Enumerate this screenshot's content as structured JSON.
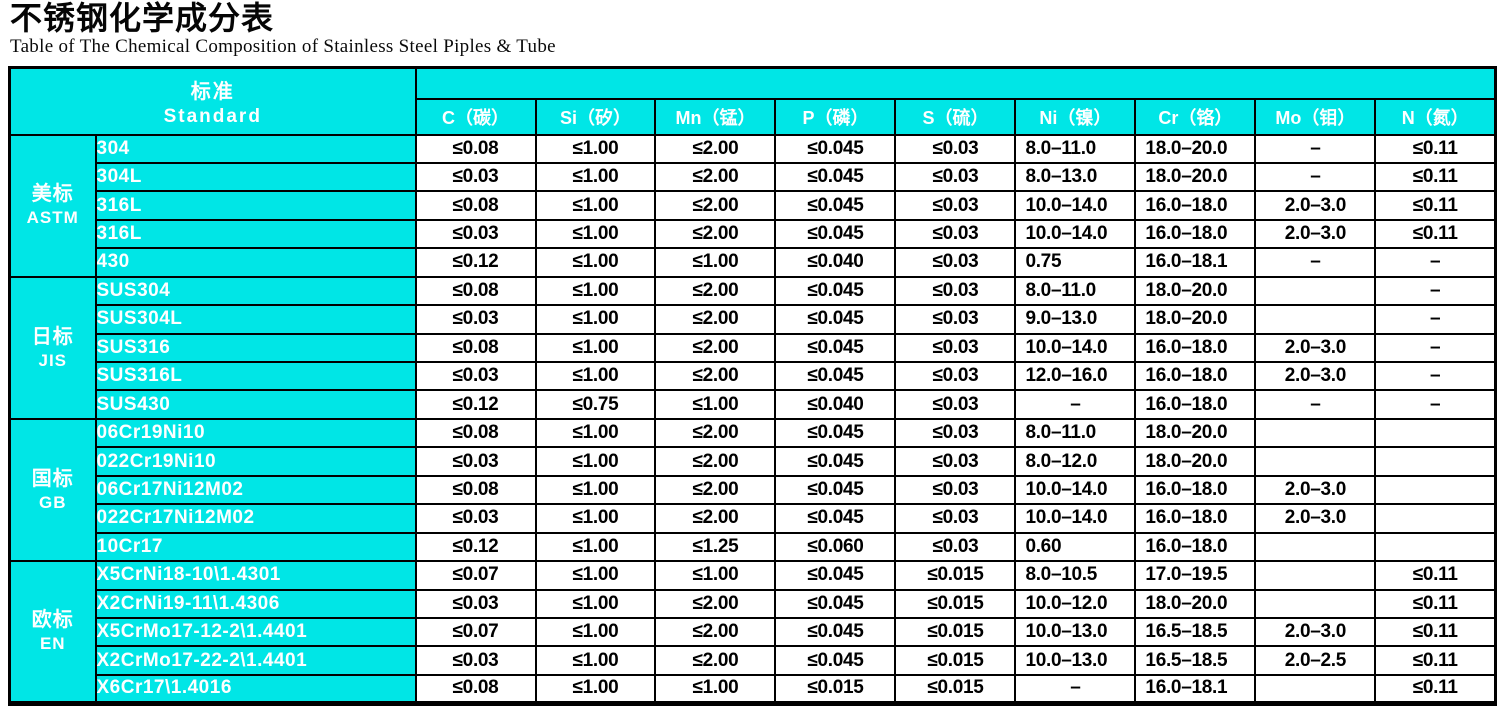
{
  "page": {
    "title": "不锈钢化学成分表",
    "subtitle": "Table of The Chemical Composition of Stainless Steel Piples & Tube"
  },
  "colors": {
    "header_bg": "#00E6E6",
    "grid": "#000000",
    "text_on_cyan": "#FFFFFF",
    "value_text": "#000000"
  },
  "table": {
    "standard_header": {
      "zh": "标准",
      "en": "Standard"
    },
    "columns": [
      "C（碳）",
      "Si（矽）",
      "Mn（锰）",
      "P（磷）",
      "S（硫）",
      "Ni（镍）",
      "Cr（铬）",
      "Mo（钼）",
      "N（氮）"
    ],
    "column_keys": [
      "c",
      "si",
      "mn",
      "p",
      "s",
      "ni",
      "cr",
      "mo",
      "n"
    ],
    "groups": [
      {
        "zh": "美标",
        "en": "ASTM",
        "rows": [
          {
            "grade": "304",
            "values": [
              "≤0.08",
              "≤1.00",
              "≤2.00",
              "≤0.045",
              "≤0.03",
              "8.0–11.0",
              "18.0–20.0",
              "–",
              "≤0.11"
            ]
          },
          {
            "grade": "304L",
            "values": [
              "≤0.03",
              "≤1.00",
              "≤2.00",
              "≤0.045",
              "≤0.03",
              "8.0–13.0",
              "18.0–20.0",
              "–",
              "≤0.11"
            ]
          },
          {
            "grade": "316L",
            "values": [
              "≤0.08",
              "≤1.00",
              "≤2.00",
              "≤0.045",
              "≤0.03",
              "10.0–14.0",
              "16.0–18.0",
              "2.0–3.0",
              "≤0.11"
            ]
          },
          {
            "grade": "316L",
            "values": [
              "≤0.03",
              "≤1.00",
              "≤2.00",
              "≤0.045",
              "≤0.03",
              "10.0–14.0",
              "16.0–18.0",
              "2.0–3.0",
              "≤0.11"
            ]
          },
          {
            "grade": "430",
            "values": [
              "≤0.12",
              "≤1.00",
              "≤1.00",
              "≤0.040",
              "≤0.03",
              "0.75",
              "16.0–18.1",
              "–",
              "–"
            ]
          }
        ]
      },
      {
        "zh": "日标",
        "en": "JIS",
        "rows": [
          {
            "grade": "SUS304",
            "values": [
              "≤0.08",
              "≤1.00",
              "≤2.00",
              "≤0.045",
              "≤0.03",
              "8.0–11.0",
              "18.0–20.0",
              "",
              "–"
            ]
          },
          {
            "grade": "SUS304L",
            "values": [
              "≤0.03",
              "≤1.00",
              "≤2.00",
              "≤0.045",
              "≤0.03",
              "9.0–13.0",
              "18.0–20.0",
              "",
              "–"
            ]
          },
          {
            "grade": "SUS316",
            "values": [
              "≤0.08",
              "≤1.00",
              "≤2.00",
              "≤0.045",
              "≤0.03",
              "10.0–14.0",
              "16.0–18.0",
              "2.0–3.0",
              "–"
            ]
          },
          {
            "grade": "SUS316L",
            "values": [
              "≤0.03",
              "≤1.00",
              "≤2.00",
              "≤0.045",
              "≤0.03",
              "12.0–16.0",
              "16.0–18.0",
              "2.0–3.0",
              "–"
            ]
          },
          {
            "grade": "SUS430",
            "values": [
              "≤0.12",
              "≤0.75",
              "≤1.00",
              "≤0.040",
              "≤0.03",
              "–",
              "16.0–18.0",
              "–",
              "–"
            ]
          }
        ]
      },
      {
        "zh": "国标",
        "en": "GB",
        "rows": [
          {
            "grade": "06Cr19Ni10",
            "values": [
              "≤0.08",
              "≤1.00",
              "≤2.00",
              "≤0.045",
              "≤0.03",
              "8.0–11.0",
              "18.0–20.0",
              "",
              ""
            ]
          },
          {
            "grade": "022Cr19Ni10",
            "values": [
              "≤0.03",
              "≤1.00",
              "≤2.00",
              "≤0.045",
              "≤0.03",
              "8.0–12.0",
              "18.0–20.0",
              "",
              ""
            ]
          },
          {
            "grade": "06Cr17Ni12M02",
            "values": [
              "≤0.08",
              "≤1.00",
              "≤2.00",
              "≤0.045",
              "≤0.03",
              "10.0–14.0",
              "16.0–18.0",
              "2.0–3.0",
              ""
            ]
          },
          {
            "grade": "022Cr17Ni12M02",
            "values": [
              "≤0.03",
              "≤1.00",
              "≤2.00",
              "≤0.045",
              "≤0.03",
              "10.0–14.0",
              "16.0–18.0",
              "2.0–3.0",
              ""
            ]
          },
          {
            "grade": "10Cr17",
            "values": [
              "≤0.12",
              "≤1.00",
              "≤1.25",
              "≤0.060",
              "≤0.03",
              "0.60",
              "16.0–18.0",
              "",
              ""
            ]
          }
        ]
      },
      {
        "zh": "欧标",
        "en": "EN",
        "rows": [
          {
            "grade": "X5CrNi18-10\\1.4301",
            "values": [
              "≤0.07",
              "≤1.00",
              "≤1.00",
              "≤0.045",
              "≤0.015",
              "8.0–10.5",
              "17.0–19.5",
              "",
              "≤0.11"
            ]
          },
          {
            "grade": "X2CrNi19-11\\1.4306",
            "values": [
              "≤0.03",
              "≤1.00",
              "≤2.00",
              "≤0.045",
              "≤0.015",
              "10.0–12.0",
              "18.0–20.0",
              "",
              "≤0.11"
            ]
          },
          {
            "grade": "X5CrMo17-12-2\\1.4401",
            "values": [
              "≤0.07",
              "≤1.00",
              "≤2.00",
              "≤0.045",
              "≤0.015",
              "10.0–13.0",
              "16.5–18.5",
              "2.0–3.0",
              "≤0.11"
            ]
          },
          {
            "grade": "X2CrMo17-22-2\\1.4401",
            "values": [
              "≤0.03",
              "≤1.00",
              "≤2.00",
              "≤0.045",
              "≤0.015",
              "10.0–13.0",
              "16.5–18.5",
              "2.0–2.5",
              "≤0.11"
            ]
          },
          {
            "grade": "X6Cr17\\1.4016",
            "values": [
              "≤0.08",
              "≤1.00",
              "≤1.00",
              "≤0.015",
              "≤0.015",
              "–",
              "16.0–18.1",
              "",
              "≤0.11"
            ]
          }
        ]
      }
    ]
  }
}
